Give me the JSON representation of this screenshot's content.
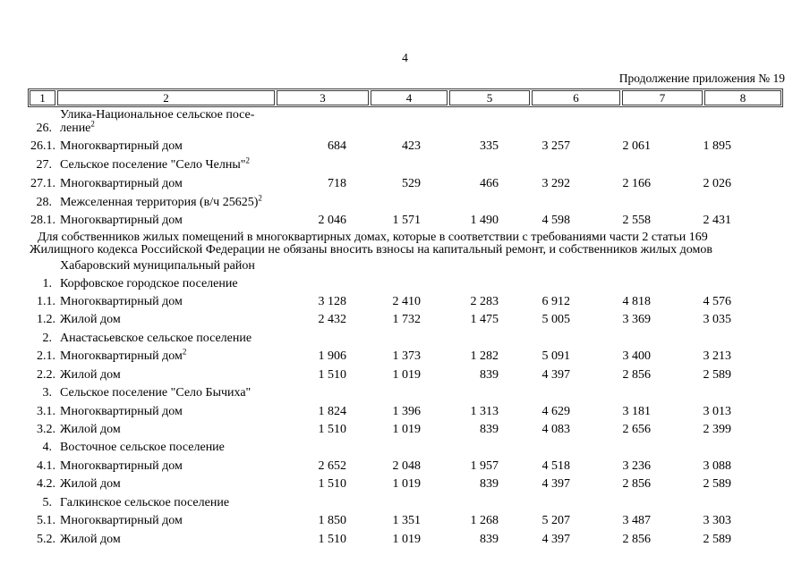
{
  "page_number": "4",
  "continuation_label": "Продолжение приложения № 19",
  "table_header": [
    "1",
    "2",
    "3",
    "4",
    "5",
    "6",
    "7",
    "8"
  ],
  "rows_part1": [
    {
      "num": "26.",
      "label": "Улика-Национальное сельское посе-",
      "label2": "ление",
      "sup": "2",
      "v": [
        "",
        "",
        "",
        "",
        "",
        ""
      ]
    },
    {
      "num": "26.1.",
      "label": "Многоквартирный дом",
      "v": [
        "684",
        "423",
        "335",
        "3 257",
        "2 061",
        "1 895"
      ]
    },
    {
      "num": "27.",
      "label": "Сельское поселение \"Село Челны\"",
      "sup": "2",
      "v": [
        "",
        "",
        "",
        "",
        "",
        ""
      ]
    },
    {
      "num": "27.1.",
      "label": "Многоквартирный дом",
      "v": [
        "718",
        "529",
        "466",
        "3 292",
        "2 166",
        "2 026"
      ]
    },
    {
      "num": "28.",
      "label": "Межселенная территория (в/ч 25625)",
      "sup": "2",
      "v": [
        "",
        "",
        "",
        "",
        "",
        ""
      ]
    },
    {
      "num": "28.1.",
      "label": "Многоквартирный дом",
      "v": [
        "2 046",
        "1 571",
        "1 490",
        "4 598",
        "2 558",
        "2 431"
      ]
    }
  ],
  "note_line1": "Для собственников жилых помещений в многоквартирных домах, которые в соответствии с требованиями части 2 статьи 169",
  "note_line2": "Жилищного кодекса Российской Федерации не обязаны вносить взносы на капитальный ремонт, и собственников жилых домов",
  "district_heading": "Хабаровский муниципальный район",
  "rows_part2": [
    {
      "num": "1.",
      "label": "Корфовское городское поселение",
      "v": [
        "",
        "",
        "",
        "",
        "",
        ""
      ]
    },
    {
      "num": "1.1.",
      "label": "Многоквартирный дом",
      "v": [
        "3 128",
        "2 410",
        "2 283",
        "6 912",
        "4 818",
        "4 576"
      ]
    },
    {
      "num": "1.2.",
      "label": "Жилой дом",
      "v": [
        "2 432",
        "1 732",
        "1 475",
        "5 005",
        "3 369",
        "3 035"
      ]
    },
    {
      "num": "2.",
      "label": "Анастасьевское сельское поселение",
      "v": [
        "",
        "",
        "",
        "",
        "",
        ""
      ]
    },
    {
      "num": "2.1.",
      "label": "Многоквартирный дом",
      "sup": "2",
      "v": [
        "1 906",
        "1 373",
        "1 282",
        "5 091",
        "3 400",
        "3 213"
      ]
    },
    {
      "num": "2.2.",
      "label": "Жилой дом",
      "v": [
        "1 510",
        "1 019",
        "839",
        "4 397",
        "2 856",
        "2 589"
      ]
    },
    {
      "num": "3.",
      "label": "Сельское поселение \"Село Бычиха\"",
      "v": [
        "",
        "",
        "",
        "",
        "",
        ""
      ]
    },
    {
      "num": "3.1.",
      "label": "Многоквартирный дом",
      "v": [
        "1 824",
        "1 396",
        "1 313",
        "4 629",
        "3 181",
        "3 013"
      ]
    },
    {
      "num": "3.2.",
      "label": "Жилой дом",
      "v": [
        "1 510",
        "1 019",
        "839",
        "4 083",
        "2 656",
        "2 399"
      ]
    },
    {
      "num": "4.",
      "label": "Восточное сельское поселение",
      "v": [
        "",
        "",
        "",
        "",
        "",
        ""
      ]
    },
    {
      "num": "4.1.",
      "label": "Многоквартирный дом",
      "v": [
        "2 652",
        "2 048",
        "1 957",
        "4 518",
        "3 236",
        "3 088"
      ]
    },
    {
      "num": "4.2.",
      "label": "Жилой дом",
      "v": [
        "1 510",
        "1 019",
        "839",
        "4 397",
        "2 856",
        "2 589"
      ]
    },
    {
      "num": "5.",
      "label": "Галкинское сельское поселение",
      "v": [
        "",
        "",
        "",
        "",
        "",
        ""
      ]
    },
    {
      "num": "5.1.",
      "label": "Многоквартирный дом",
      "v": [
        "1 850",
        "1 351",
        "1 268",
        "5 207",
        "3 487",
        "3 303"
      ]
    },
    {
      "num": "5.2.",
      "label": "Жилой дом",
      "v": [
        "1 510",
        "1 019",
        "839",
        "4 397",
        "2 856",
        "2 589"
      ]
    }
  ]
}
